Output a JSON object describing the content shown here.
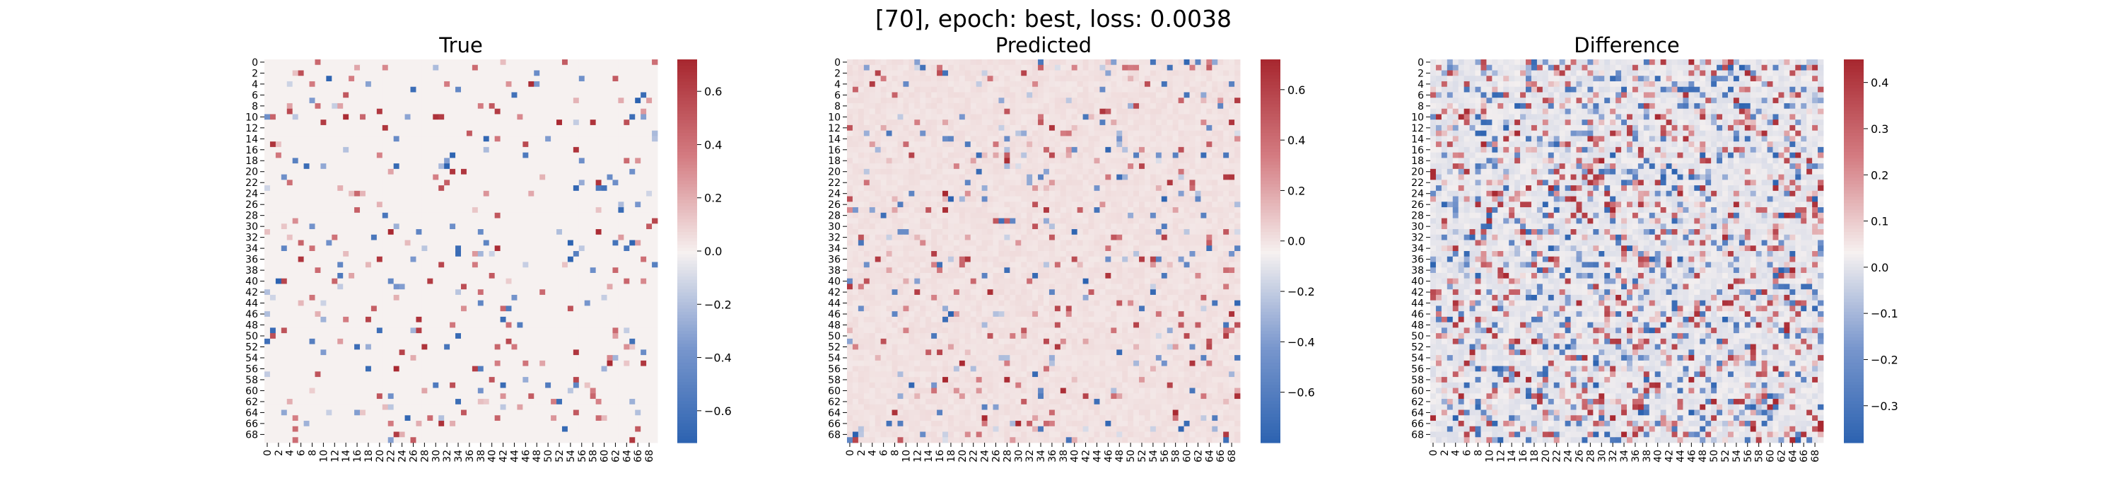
{
  "figure": {
    "suptitle": "[70], epoch: best, loss: 0.0038"
  },
  "chart_data": [
    {
      "type": "heatmap",
      "title": "True",
      "rows": 70,
      "cols": 70,
      "row_ticks": [
        0,
        2,
        4,
        6,
        8,
        10,
        12,
        14,
        16,
        18,
        20,
        22,
        24,
        26,
        28,
        30,
        32,
        34,
        36,
        38,
        40,
        42,
        44,
        46,
        48,
        50,
        52,
        54,
        56,
        58,
        60,
        62,
        64,
        66,
        68
      ],
      "col_ticks": [
        0,
        2,
        4,
        6,
        8,
        10,
        12,
        14,
        16,
        18,
        20,
        22,
        24,
        26,
        28,
        30,
        32,
        34,
        36,
        38,
        40,
        42,
        44,
        46,
        48,
        50,
        52,
        54,
        56,
        58,
        60,
        62,
        64,
        66,
        68
      ],
      "colorbar": {
        "vmin": -0.72,
        "vmax": 0.72,
        "ticks": [
          "-0.6",
          "-0.4",
          "-0.2",
          "0.0",
          "0.2",
          "0.4",
          "0.6"
        ],
        "colormap": "vlag"
      },
      "value_distribution": {
        "background": 0.0,
        "nonzero_density": 0.07,
        "value_range": [
          -0.72,
          0.72
        ]
      }
    },
    {
      "type": "heatmap",
      "title": "Predicted",
      "rows": 70,
      "cols": 70,
      "row_ticks": [
        0,
        2,
        4,
        6,
        8,
        10,
        12,
        14,
        16,
        18,
        20,
        22,
        24,
        26,
        28,
        30,
        32,
        34,
        36,
        38,
        40,
        42,
        44,
        46,
        48,
        50,
        52,
        54,
        56,
        58,
        60,
        62,
        64,
        66,
        68
      ],
      "col_ticks": [
        0,
        2,
        4,
        6,
        8,
        10,
        12,
        14,
        16,
        18,
        20,
        22,
        24,
        26,
        28,
        30,
        32,
        34,
        36,
        38,
        40,
        42,
        44,
        46,
        48,
        50,
        52,
        54,
        56,
        58,
        60,
        62,
        64,
        66,
        68
      ],
      "colorbar": {
        "vmin": -0.8,
        "vmax": 0.72,
        "ticks": [
          "-0.6",
          "-0.4",
          "-0.2",
          "0.0",
          "0.2",
          "0.4",
          "0.6"
        ],
        "colormap": "vlag"
      },
      "value_distribution": {
        "background": 0.01,
        "nonzero_density": 0.09,
        "value_range": [
          -0.8,
          0.72
        ]
      }
    },
    {
      "type": "heatmap",
      "title": "Difference",
      "rows": 70,
      "cols": 70,
      "row_ticks": [
        0,
        2,
        4,
        6,
        8,
        10,
        12,
        14,
        16,
        18,
        20,
        22,
        24,
        26,
        28,
        30,
        32,
        34,
        36,
        38,
        40,
        42,
        44,
        46,
        48,
        50,
        52,
        54,
        56,
        58,
        60,
        62,
        64,
        66,
        68
      ],
      "col_ticks": [
        0,
        2,
        4,
        6,
        8,
        10,
        12,
        14,
        16,
        18,
        20,
        22,
        24,
        26,
        28,
        30,
        32,
        34,
        36,
        38,
        40,
        42,
        44,
        46,
        48,
        50,
        52,
        54,
        56,
        58,
        60,
        62,
        64,
        66,
        68
      ],
      "colorbar": {
        "vmin": -0.38,
        "vmax": 0.45,
        "ticks": [
          "-0.3",
          "-0.2",
          "-0.1",
          "0.0",
          "0.1",
          "0.2",
          "0.3",
          "0.4"
        ],
        "colormap": "vlag"
      },
      "value_distribution": {
        "background": 0.01,
        "nonzero_density": 0.3,
        "value_range": [
          -0.38,
          0.45
        ]
      }
    }
  ]
}
